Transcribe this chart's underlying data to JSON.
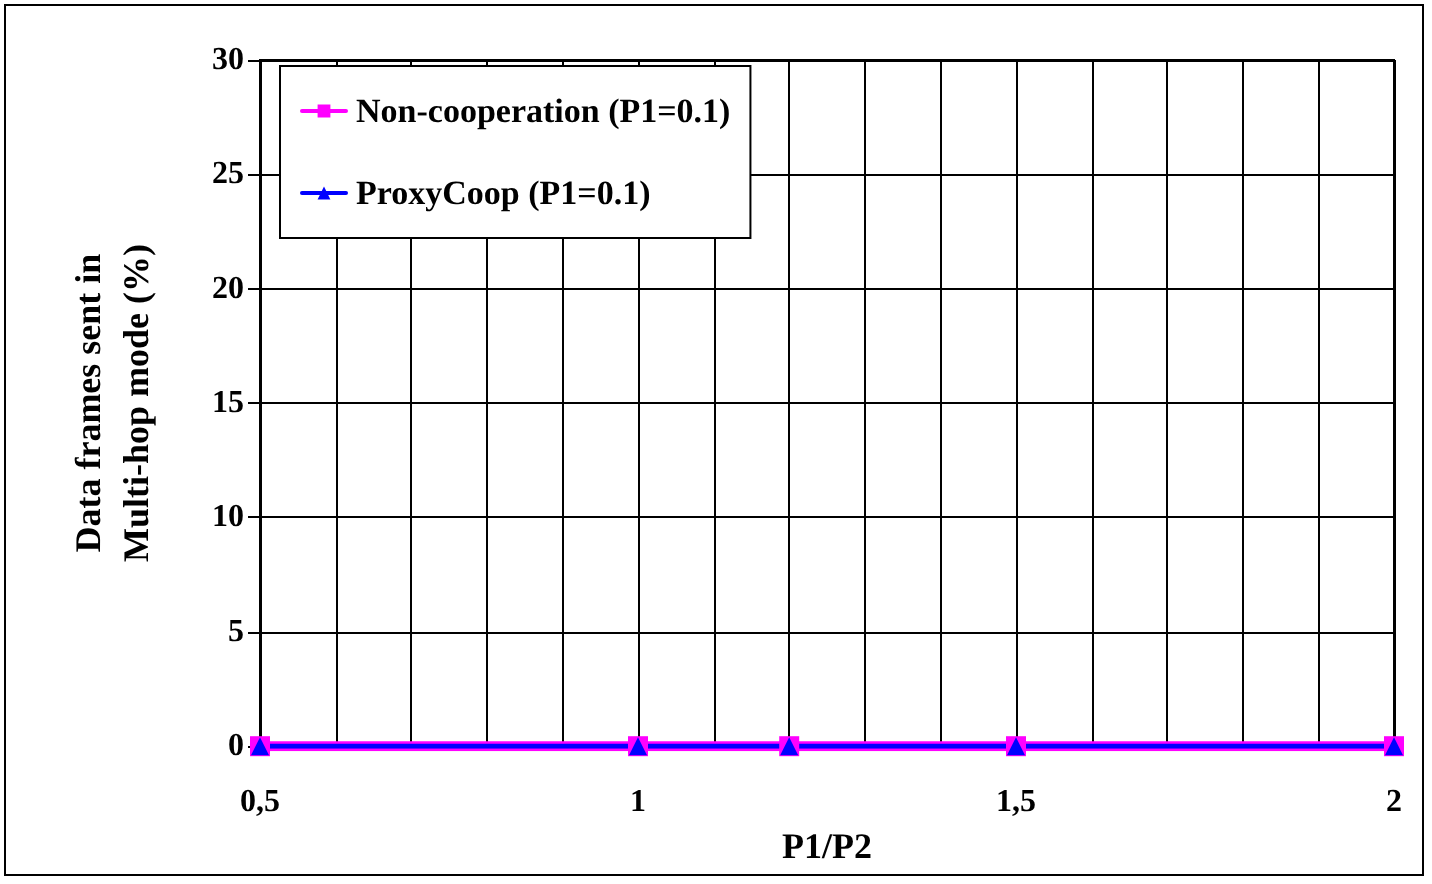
{
  "chart_data": {
    "type": "line",
    "xlabel": "P1/P2",
    "ylabel": "Data frames sent in\nMulti-hop mode (%)",
    "x": [
      0.5,
      1,
      1.2,
      1.5,
      2
    ],
    "series": [
      {
        "name": "Non-cooperation (P1=0.1)",
        "color": "#ff00ff",
        "marker": "square",
        "values": [
          0,
          0,
          0,
          0,
          0
        ]
      },
      {
        "name": "ProxyCoop (P1=0.1)",
        "color": "#0000ff",
        "marker": "triangle",
        "values": [
          0,
          0,
          0,
          0,
          0
        ]
      }
    ],
    "xlim": [
      0.5,
      2
    ],
    "xticks": [
      {
        "value": 0.5,
        "label": "0,5"
      },
      {
        "value": 0.6,
        "label": null
      },
      {
        "value": 0.7,
        "label": null
      },
      {
        "value": 0.8,
        "label": null
      },
      {
        "value": 0.9,
        "label": null
      },
      {
        "value": 1,
        "label": "1"
      },
      {
        "value": 1.1,
        "label": null
      },
      {
        "value": 1.2,
        "label": null
      },
      {
        "value": 1.3,
        "label": null
      },
      {
        "value": 1.4,
        "label": null
      },
      {
        "value": 1.5,
        "label": "1,5"
      },
      {
        "value": 1.6,
        "label": null
      },
      {
        "value": 1.7,
        "label": null
      },
      {
        "value": 1.8,
        "label": null
      },
      {
        "value": 1.9,
        "label": null
      },
      {
        "value": 2,
        "label": "2"
      }
    ],
    "ylim": [
      0,
      30
    ],
    "yticks": [
      0,
      5,
      10,
      15,
      20,
      25,
      30
    ],
    "grid": true,
    "legend": "top left",
    "line_style": "solid"
  }
}
